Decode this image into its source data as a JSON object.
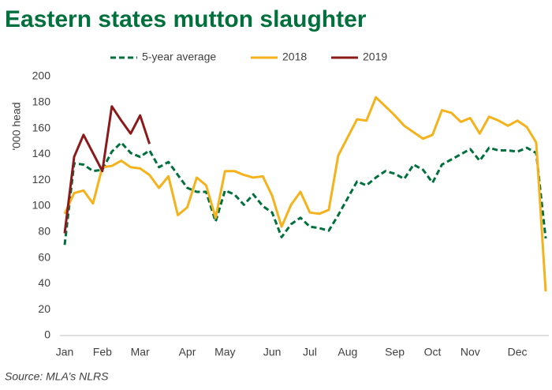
{
  "chart_data": {
    "type": "line",
    "title": "Eastern states mutton slaughter",
    "y_label": "'000 head",
    "source": "Source: MLA’s NLRS",
    "categories": [
      "Jan",
      null,
      null,
      null,
      "Feb",
      null,
      null,
      null,
      "Mar",
      null,
      null,
      null,
      null,
      "Apr",
      null,
      null,
      null,
      "May",
      null,
      null,
      null,
      null,
      "Jun",
      null,
      null,
      null,
      "Jul",
      null,
      null,
      null,
      "Aug",
      null,
      null,
      null,
      null,
      "Sep",
      null,
      null,
      null,
      "Oct",
      null,
      null,
      null,
      "Nov",
      null,
      null,
      null,
      null,
      "Dec",
      null,
      null,
      null
    ],
    "series": [
      {
        "name": "5-year average",
        "color": "#00703c",
        "dashed": true,
        "values": [
          70,
          133,
          132,
          127,
          128,
          142,
          149,
          141,
          138,
          143,
          130,
          134,
          124,
          114,
          111,
          111,
          88,
          112,
          109,
          101,
          109,
          100,
          95,
          76,
          86,
          91,
          84,
          83,
          81,
          93,
          106,
          119,
          116,
          122,
          127,
          125,
          121,
          132,
          128,
          118,
          132,
          136,
          140,
          144,
          135,
          145,
          143,
          143,
          142,
          145,
          141,
          75
        ]
      },
      {
        "name": "2018",
        "color": "#f5b21b",
        "dashed": false,
        "values": [
          94,
          110,
          112,
          102,
          130,
          131,
          135,
          130,
          129,
          124,
          114,
          123,
          93,
          99,
          122,
          116,
          91,
          127,
          127,
          124,
          122,
          123,
          108,
          84,
          101,
          111,
          95,
          94,
          97,
          139,
          153,
          167,
          166,
          184,
          177,
          170,
          162,
          157,
          152,
          155,
          174,
          172,
          165,
          168,
          156,
          169,
          166,
          162,
          166,
          161,
          149,
          34
        ]
      },
      {
        "name": "2019",
        "color": "#8b1a1a",
        "dashed": false,
        "values": [
          79,
          138,
          155,
          141,
          127,
          177,
          166,
          156,
          170,
          148,
          null,
          null,
          null,
          null,
          null,
          null,
          null,
          null,
          null,
          null,
          null,
          null,
          null,
          null,
          null,
          null,
          null,
          null,
          null,
          null,
          null,
          null,
          null,
          null,
          null,
          null,
          null,
          null,
          null,
          null,
          null,
          null,
          null,
          null,
          null,
          null,
          null,
          null,
          null,
          null,
          null,
          null
        ]
      }
    ],
    "ylim": [
      0,
      200
    ],
    "yticks": [
      0,
      20,
      40,
      60,
      80,
      100,
      120,
      140,
      160,
      180,
      200
    ]
  }
}
